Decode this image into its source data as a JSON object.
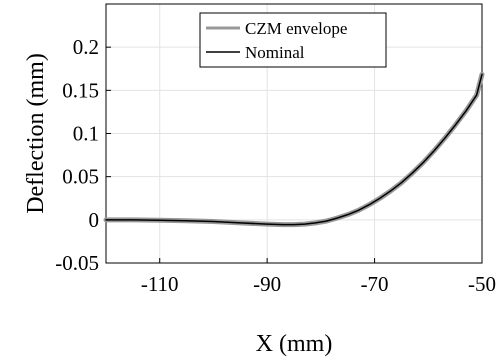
{
  "chart_data": {
    "type": "line",
    "xlabel": "X (mm)",
    "ylabel": "Deflection (mm)",
    "xlim": [
      -120,
      -50
    ],
    "ylim": [
      -0.05,
      0.25
    ],
    "xticks": [
      -110,
      -90,
      -70,
      -50
    ],
    "yticks": [
      -0.05,
      0,
      0.05,
      0.1,
      0.15,
      0.2
    ],
    "ytick_labels": [
      "-0.05",
      "0",
      "0.05",
      "0.1",
      "0.15",
      "0.2"
    ],
    "xtick_labels": [
      "-110",
      "-90",
      "-70",
      "-50"
    ],
    "grid": true,
    "legend_position": "top-center",
    "series": [
      {
        "name": "CZM envelope",
        "color": "#999999",
        "x": [
          -120,
          -115,
          -110,
          -105,
          -100,
          -95,
          -90,
          -87,
          -85,
          -83,
          -81,
          -79,
          -77,
          -75,
          -73,
          -71,
          -69,
          -67,
          -65,
          -63,
          -61,
          -59,
          -57,
          -55,
          -53,
          -51,
          -50
        ],
        "y": [
          0,
          0,
          -0.0005,
          -0.001,
          -0.002,
          -0.0035,
          -0.005,
          -0.0055,
          -0.0055,
          -0.005,
          -0.0035,
          -0.0015,
          0.002,
          0.006,
          0.011,
          0.0175,
          0.025,
          0.0335,
          0.043,
          0.054,
          0.066,
          0.0795,
          0.094,
          0.1095,
          0.126,
          0.1445,
          0.1685
        ]
      },
      {
        "name": "Nominal",
        "color": "#000000",
        "x": [
          -120,
          -115,
          -110,
          -105,
          -100,
          -95,
          -90,
          -87,
          -85,
          -83,
          -81,
          -79,
          -77,
          -75,
          -73,
          -71,
          -69,
          -67,
          -65,
          -63,
          -61,
          -59,
          -57,
          -55,
          -53,
          -51,
          -50
        ],
        "y": [
          0,
          0,
          -0.0005,
          -0.001,
          -0.002,
          -0.0035,
          -0.005,
          -0.0055,
          -0.0055,
          -0.005,
          -0.0035,
          -0.0015,
          0.002,
          0.006,
          0.011,
          0.0175,
          0.025,
          0.0335,
          0.043,
          0.054,
          0.066,
          0.0795,
          0.094,
          0.1095,
          0.126,
          0.1445,
          0.1685
        ]
      }
    ]
  }
}
